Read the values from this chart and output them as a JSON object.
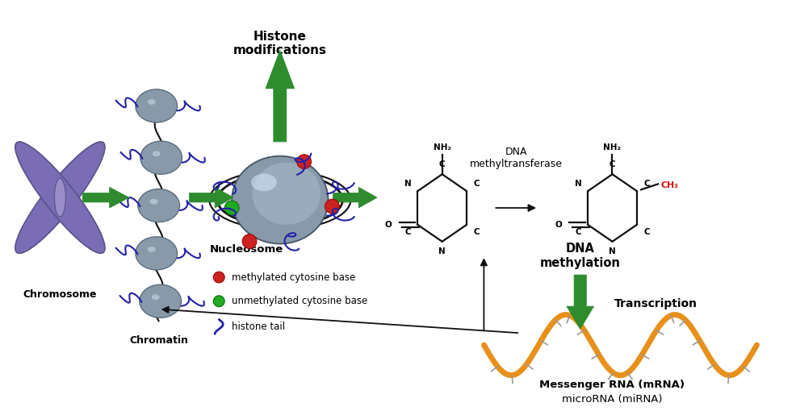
{
  "bg_color": "#ffffff",
  "green_color": "#2e8b2e",
  "black_color": "#111111",
  "chromosome_color": "#7b6db5",
  "chromosome_edge": "#5a508a",
  "chromatin_bead_color": "#8899aa",
  "chromatin_bead_edge": "#556677",
  "nucleosome_color": "#8899aa",
  "nucleosome_edge": "#445566",
  "blue_tail_color": "#2222aa",
  "red_dot_color": "#cc2222",
  "green_dot_color": "#22aa22",
  "mrna_color": "#e8901a",
  "mrna_tick_color": "#999999",
  "ch3_color": "#cc1111",
  "labels": {
    "chromosome": "Chromosome",
    "chromatin": "Chromatin",
    "nucleosome": "Nucleosome",
    "histone_mod": "Histone\nmodifications",
    "dna_methyltransferase": "DNA\nmethyltransferase",
    "dna_methylation": "DNA\nmethylation",
    "transcription": "Transcription",
    "mrna_line1": "Messenger RNA (mRNA)",
    "mrna_line2": "microRNA (miRNA)",
    "legend_methylated": "methylated cytosine base",
    "legend_unmethylated": "unmethylated cytosine base",
    "legend_histone": "histone tail",
    "NH2": "NH",
    "CH3": "CH",
    "atom_C": "C",
    "atom_N": "N",
    "atom_O": "O"
  }
}
